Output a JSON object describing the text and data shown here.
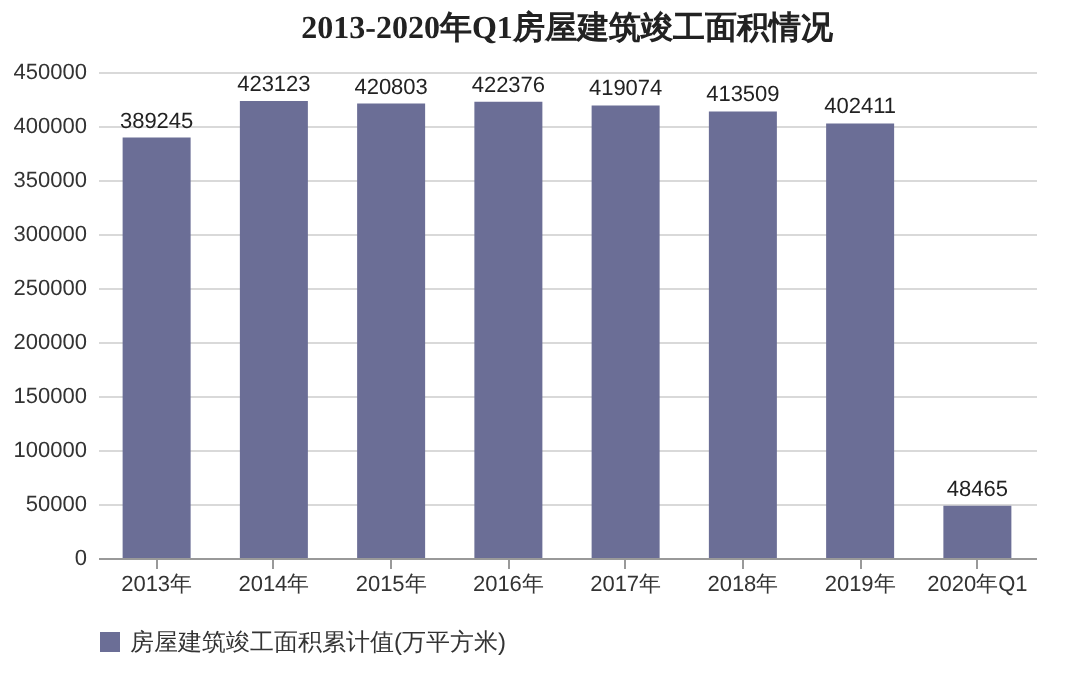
{
  "chart_data": {
    "type": "bar",
    "title": "2013-2020年Q1房屋建筑竣工面积情况",
    "categories": [
      "2013年",
      "2014年",
      "2015年",
      "2016年",
      "2017年",
      "2018年",
      "2019年",
      "2020年Q1"
    ],
    "series": [
      {
        "name": "房屋建筑竣工面积累计值(万平方米)",
        "color": "#6b6e96",
        "values": [
          389245,
          423123,
          420803,
          422376,
          419074,
          413509,
          402411,
          48465
        ]
      }
    ],
    "ylim": [
      0,
      450000
    ],
    "yticks": [
      0,
      50000,
      100000,
      150000,
      200000,
      250000,
      300000,
      350000,
      400000,
      450000
    ],
    "grid": "y",
    "legend": "bottom",
    "data_labels": true
  }
}
